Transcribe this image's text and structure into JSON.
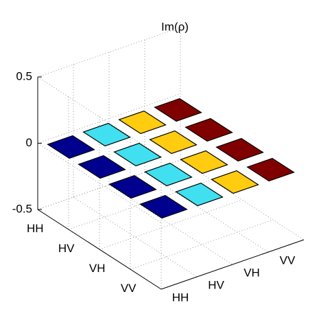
{
  "chart_data": {
    "type": "bar3d",
    "title": "Im(ρ)",
    "row_labels": [
      "HH",
      "HV",
      "VH",
      "VV"
    ],
    "column_labels": [
      "HH",
      "HV",
      "VH",
      "VV"
    ],
    "column_colors": [
      "#00008f",
      "#40e0f0",
      "#ffcc10",
      "#800000"
    ],
    "values": [
      [
        0,
        0,
        0,
        0
      ],
      [
        0,
        0,
        0,
        0
      ],
      [
        0,
        0,
        0,
        0
      ],
      [
        0,
        0,
        0,
        0
      ]
    ],
    "zlim": [
      -0.5,
      0.5
    ],
    "zticks": [
      -0.5,
      0,
      0.5
    ],
    "grid": true
  }
}
